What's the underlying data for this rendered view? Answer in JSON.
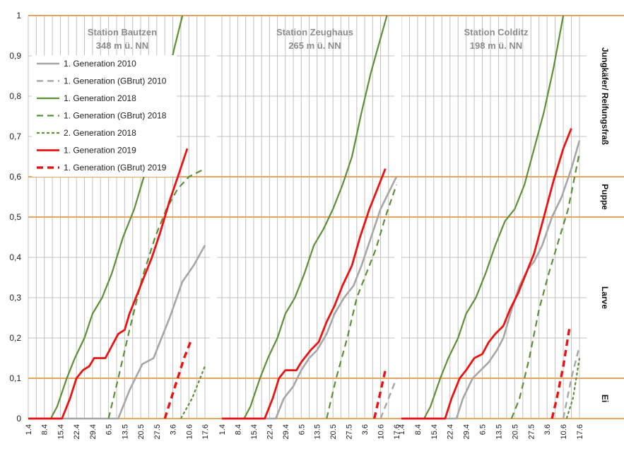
{
  "chart_data": {
    "type": "line",
    "ylim": [
      0,
      1
    ],
    "y_ticks": [
      "0",
      "0,1",
      "0,2",
      "0,3",
      "0,4",
      "0,5",
      "0,6",
      "0,7",
      "0,8",
      "0,9",
      "1"
    ],
    "x_ticks": [
      "1.4",
      "8.4",
      "15.4",
      "22.4",
      "29.4",
      "6.5",
      "13.5",
      "20.5",
      "27.5",
      "3.6",
      "10.6",
      "17.6"
    ],
    "grid": true,
    "legend_position": "top-left",
    "stage_labels": [
      {
        "label": "Ei",
        "range": [
          0,
          0.1
        ]
      },
      {
        "label": "Larve",
        "range": [
          0.1,
          0.5
        ]
      },
      {
        "label": "Puppe",
        "range": [
          0.5,
          0.6
        ]
      },
      {
        "label": "Jungkäfer/ Reifungsfraß",
        "range": [
          0.6,
          1.0
        ]
      }
    ],
    "stage_boundaries": [
      0,
      0.1,
      0.5,
      0.6,
      1.0
    ],
    "colors": {
      "stage_line": "#e8a35f",
      "grid": "#c0c0c0",
      "panel_divider": "#999999"
    },
    "series_styles": [
      {
        "name": "1. Generation 2010",
        "color": "#a6a6a6",
        "dash": "solid",
        "width": 2.6
      },
      {
        "name": "1. Generation (GBrut) 2010",
        "color": "#a6a6a6",
        "dash": "dashed",
        "width": 2.4
      },
      {
        "name": "1. Generation 2018",
        "color": "#5b9033",
        "dash": "solid",
        "width": 2.2
      },
      {
        "name": "1. Generation (GBrut) 2018",
        "color": "#5b9033",
        "dash": "dashed",
        "width": 2.2
      },
      {
        "name": "2. Generation 2018",
        "color": "#5b9033",
        "dash": "dotted",
        "width": 2.2
      },
      {
        "name": "1. Generation 2019",
        "color": "#ee1111",
        "dash": "solid",
        "width": 2.8
      },
      {
        "name": "1. Generation (GBrut) 2019",
        "color": "#ee1111",
        "dash": "dashed",
        "width": 3.4
      }
    ],
    "panels": [
      {
        "title": "Station Bautzen",
        "subtitle": "348 m ü. NN",
        "series": [
          {
            "name": "1. Generation 2010",
            "points": [
              [
                0,
                0
              ],
              [
                5.6,
                0
              ],
              [
                6.3,
                0.07
              ],
              [
                7.1,
                0.135
              ],
              [
                7.8,
                0.15
              ],
              [
                8.3,
                0.2
              ],
              [
                8.8,
                0.25
              ],
              [
                9.6,
                0.34
              ],
              [
                10.3,
                0.38
              ],
              [
                11.0,
                0.43
              ]
            ]
          },
          {
            "name": "1. Generation (GBrut) 2010",
            "points": []
          },
          {
            "name": "1. Generation 2018",
            "points": [
              [
                0,
                0
              ],
              [
                1.4,
                0
              ],
              [
                1.8,
                0.03
              ],
              [
                2.4,
                0.1
              ],
              [
                2.9,
                0.15
              ],
              [
                3.5,
                0.2
              ],
              [
                4.0,
                0.26
              ],
              [
                4.6,
                0.3
              ],
              [
                5.2,
                0.36
              ],
              [
                5.9,
                0.45
              ],
              [
                6.6,
                0.52
              ],
              [
                7.2,
                0.6
              ],
              [
                7.8,
                0.7
              ],
              [
                8.4,
                0.8
              ],
              [
                9.1,
                0.92
              ],
              [
                9.6,
                1.0
              ]
            ]
          },
          {
            "name": "1. Generation (GBrut) 2018",
            "points": [
              [
                5.0,
                0
              ],
              [
                5.6,
                0.1
              ],
              [
                6.3,
                0.22
              ],
              [
                7.1,
                0.35
              ],
              [
                7.9,
                0.45
              ],
              [
                8.6,
                0.52
              ],
              [
                9.3,
                0.57
              ],
              [
                10.0,
                0.6
              ],
              [
                11.0,
                0.62
              ]
            ]
          },
          {
            "name": "2. Generation 2018",
            "points": [
              [
                9.5,
                0
              ],
              [
                10.2,
                0.05
              ],
              [
                11.0,
                0.13
              ]
            ]
          },
          {
            "name": "1. Generation 2019",
            "points": [
              [
                0,
                0
              ],
              [
                2.1,
                0
              ],
              [
                2.6,
                0.05
              ],
              [
                3.0,
                0.1
              ],
              [
                3.4,
                0.12
              ],
              [
                3.8,
                0.13
              ],
              [
                4.1,
                0.15
              ],
              [
                4.8,
                0.15
              ],
              [
                5.2,
                0.18
              ],
              [
                5.6,
                0.21
              ],
              [
                6.0,
                0.22
              ],
              [
                6.3,
                0.26
              ],
              [
                6.7,
                0.3
              ],
              [
                7.2,
                0.35
              ],
              [
                7.7,
                0.4
              ],
              [
                8.2,
                0.46
              ],
              [
                8.8,
                0.54
              ],
              [
                9.4,
                0.61
              ],
              [
                9.9,
                0.67
              ]
            ]
          },
          {
            "name": "1. Generation (GBrut) 2019",
            "points": [
              [
                8.5,
                0
              ],
              [
                8.9,
                0.05
              ],
              [
                9.3,
                0.1
              ],
              [
                9.7,
                0.15
              ],
              [
                10.1,
                0.19
              ]
            ]
          }
        ]
      },
      {
        "title": "Station Zeughaus",
        "subtitle": "265 m ü. NN",
        "series": [
          {
            "name": "1. Generation 2010",
            "points": [
              [
                0,
                0
              ],
              [
                3.4,
                0
              ],
              [
                3.9,
                0.05
              ],
              [
                4.5,
                0.08
              ],
              [
                5.0,
                0.12
              ],
              [
                5.5,
                0.15
              ],
              [
                6.0,
                0.17
              ],
              [
                6.6,
                0.21
              ],
              [
                7.1,
                0.26
              ],
              [
                7.7,
                0.3
              ],
              [
                8.3,
                0.33
              ],
              [
                8.8,
                0.38
              ],
              [
                9.4,
                0.45
              ],
              [
                10.0,
                0.52
              ],
              [
                11.0,
                0.6
              ]
            ]
          },
          {
            "name": "1. Generation (GBrut) 2010",
            "points": [
              [
                10.0,
                0
              ],
              [
                10.5,
                0.05
              ],
              [
                11.0,
                0.1
              ]
            ]
          },
          {
            "name": "1. Generation 2018",
            "points": [
              [
                0,
                0
              ],
              [
                1.4,
                0
              ],
              [
                1.8,
                0.03
              ],
              [
                2.4,
                0.1
              ],
              [
                2.9,
                0.15
              ],
              [
                3.5,
                0.2
              ],
              [
                4.0,
                0.26
              ],
              [
                4.6,
                0.3
              ],
              [
                5.2,
                0.36
              ],
              [
                5.8,
                0.43
              ],
              [
                6.4,
                0.47
              ],
              [
                7.0,
                0.52
              ],
              [
                7.6,
                0.58
              ],
              [
                8.2,
                0.65
              ],
              [
                8.8,
                0.76
              ],
              [
                9.4,
                0.86
              ],
              [
                9.9,
                0.93
              ],
              [
                10.4,
                1.0
              ]
            ]
          },
          {
            "name": "1. Generation (GBrut) 2018",
            "points": [
              [
                6.6,
                0
              ],
              [
                7.2,
                0.1
              ],
              [
                7.9,
                0.2
              ],
              [
                8.5,
                0.3
              ],
              [
                9.1,
                0.36
              ],
              [
                9.7,
                0.42
              ],
              [
                10.3,
                0.5
              ],
              [
                11.0,
                0.58
              ]
            ]
          },
          {
            "name": "2. Generation 2018",
            "points": []
          },
          {
            "name": "1. Generation 2019",
            "points": [
              [
                0,
                0
              ],
              [
                2.7,
                0
              ],
              [
                3.2,
                0.05
              ],
              [
                3.6,
                0.1
              ],
              [
                4.0,
                0.12
              ],
              [
                4.7,
                0.12
              ],
              [
                5.0,
                0.14
              ],
              [
                5.6,
                0.17
              ],
              [
                6.1,
                0.19
              ],
              [
                6.6,
                0.24
              ],
              [
                7.1,
                0.28
              ],
              [
                7.6,
                0.33
              ],
              [
                8.2,
                0.38
              ],
              [
                8.7,
                0.45
              ],
              [
                9.3,
                0.52
              ],
              [
                9.8,
                0.57
              ],
              [
                10.3,
                0.62
              ]
            ]
          },
          {
            "name": "1. Generation (GBrut) 2019",
            "points": [
              [
                9.6,
                0
              ],
              [
                9.9,
                0.05
              ],
              [
                10.3,
                0.12
              ]
            ]
          }
        ]
      },
      {
        "title": "Station Colditz",
        "subtitle": "198 m ü. NN",
        "series": [
          {
            "name": "1. Generation 2010",
            "points": [
              [
                0,
                0
              ],
              [
                3.4,
                0
              ],
              [
                3.8,
                0.05
              ],
              [
                4.4,
                0.1
              ],
              [
                4.9,
                0.12
              ],
              [
                5.4,
                0.14
              ],
              [
                5.9,
                0.17
              ],
              [
                6.3,
                0.2
              ],
              [
                6.8,
                0.27
              ],
              [
                7.3,
                0.33
              ],
              [
                7.8,
                0.37
              ],
              [
                8.2,
                0.39
              ],
              [
                8.7,
                0.43
              ],
              [
                9.3,
                0.5
              ],
              [
                9.9,
                0.55
              ],
              [
                10.5,
                0.62
              ],
              [
                11.0,
                0.69
              ]
            ]
          },
          {
            "name": "1. Generation (GBrut) 2010",
            "points": [
              [
                10.0,
                0
              ],
              [
                10.5,
                0.1
              ],
              [
                11.0,
                0.18
              ]
            ]
          },
          {
            "name": "1. Generation 2018",
            "points": [
              [
                0,
                0
              ],
              [
                1.4,
                0
              ],
              [
                1.8,
                0.03
              ],
              [
                2.4,
                0.1
              ],
              [
                2.9,
                0.15
              ],
              [
                3.5,
                0.2
              ],
              [
                4.0,
                0.26
              ],
              [
                4.6,
                0.3
              ],
              [
                5.2,
                0.36
              ],
              [
                5.8,
                0.43
              ],
              [
                6.4,
                0.49
              ],
              [
                7.0,
                0.52
              ],
              [
                7.6,
                0.58
              ],
              [
                8.2,
                0.67
              ],
              [
                8.8,
                0.76
              ],
              [
                9.4,
                0.87
              ],
              [
                10.0,
                1.0
              ]
            ]
          },
          {
            "name": "1. Generation (GBrut) 2018",
            "points": [
              [
                6.8,
                0
              ],
              [
                7.3,
                0.05
              ],
              [
                7.9,
                0.15
              ],
              [
                8.5,
                0.27
              ],
              [
                9.1,
                0.36
              ],
              [
                9.7,
                0.44
              ],
              [
                10.3,
                0.52
              ],
              [
                11.0,
                0.66
              ]
            ]
          },
          {
            "name": "2. Generation 2018",
            "points": [
              [
                10.2,
                0
              ],
              [
                10.6,
                0.05
              ],
              [
                11.0,
                0.15
              ]
            ]
          },
          {
            "name": "1. Generation 2019",
            "points": [
              [
                0,
                0
              ],
              [
                2.7,
                0
              ],
              [
                3.1,
                0.05
              ],
              [
                3.6,
                0.1
              ],
              [
                4.0,
                0.12
              ],
              [
                4.5,
                0.15
              ],
              [
                5.0,
                0.16
              ],
              [
                5.4,
                0.19
              ],
              [
                5.8,
                0.21
              ],
              [
                6.3,
                0.23
              ],
              [
                6.7,
                0.27
              ],
              [
                7.2,
                0.31
              ],
              [
                7.7,
                0.36
              ],
              [
                8.2,
                0.41
              ],
              [
                8.8,
                0.5
              ],
              [
                9.4,
                0.59
              ],
              [
                10.0,
                0.67
              ],
              [
                10.5,
                0.72
              ]
            ]
          },
          {
            "name": "1. Generation (GBrut) 2019",
            "points": [
              [
                9.3,
                0
              ],
              [
                9.6,
                0.05
              ],
              [
                10.0,
                0.13
              ],
              [
                10.4,
                0.23
              ]
            ]
          }
        ]
      }
    ]
  }
}
